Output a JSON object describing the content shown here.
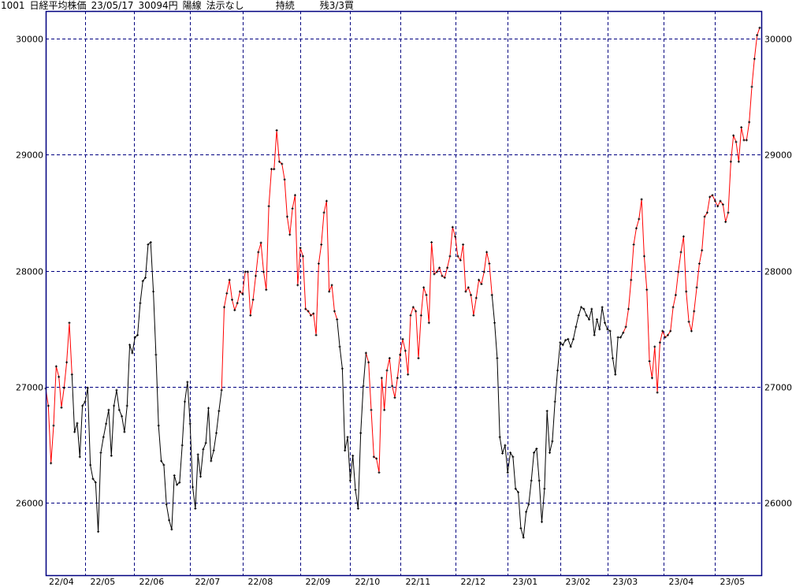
{
  "header": {
    "code": "1001",
    "name": "日経平均株価",
    "date": "23/05/17",
    "price": "30094円",
    "candle": "陽線",
    "signal": "法示なし",
    "state": "持続",
    "position": "残3/3買"
  },
  "chart_data": {
    "type": "line",
    "title": "",
    "xlabel": "",
    "ylabel": "",
    "ylim": [
      25375,
      30238
    ],
    "yticks": [
      26000,
      27000,
      28000,
      29000,
      30000
    ],
    "grid": true,
    "colors": {
      "frame": "#000080",
      "grid": "#000080",
      "up": "#ff0000",
      "down": "#000000",
      "marker": "#000000"
    },
    "xticks": [
      {
        "label": "22/04",
        "index": 0,
        "grid": false
      },
      {
        "label": "22/05",
        "index": 15,
        "grid": true
      },
      {
        "label": "22/06",
        "index": 33.5,
        "grid": true
      },
      {
        "label": "22/07",
        "index": 55,
        "grid": true
      },
      {
        "label": "22/08",
        "index": 75,
        "grid": true
      },
      {
        "label": "22/09",
        "index": 97,
        "grid": true
      },
      {
        "label": "22/10",
        "index": 116,
        "grid": true
      },
      {
        "label": "22/11",
        "index": 135,
        "grid": true
      },
      {
        "label": "22/12",
        "index": 156,
        "grid": true
      },
      {
        "label": "23/01",
        "index": 176,
        "grid": true
      },
      {
        "label": "23/02",
        "index": 196,
        "grid": true
      },
      {
        "label": "23/03",
        "index": 214,
        "grid": true
      },
      {
        "label": "23/04",
        "index": 235.5,
        "grid": true
      },
      {
        "label": "23/05",
        "index": 255,
        "grid": true
      }
    ],
    "series": [
      {
        "color": "#ff0000",
        "values": [
          26985,
          26835,
          26340,
          26665,
          27175,
          27085,
          26820,
          26990,
          27210,
          27550,
          27105
        ]
      },
      {
        "color": "#000000",
        "values": [
          26610,
          26685,
          26395,
          26835,
          26870,
          26990,
          26325,
          26205,
          26175,
          25750,
          26430,
          26565,
          26680,
          26800,
          26405,
          26835,
          26970,
          26800,
          26745,
          26610,
          26835,
          27360,
          27290,
          27425,
          27445,
          27720,
          27910,
          27940,
          28225,
          28245,
          27820,
          27275,
          26665,
          26360,
          26325,
          25985,
          25850,
          25770,
          26235,
          26155,
          26175,
          26495,
          26870,
          27040,
          26680,
          26135,
          25950,
          26415,
          26225,
          26460,
          26515,
          26815,
          26360,
          26450,
          26600,
          26790,
          26970
        ]
      },
      {
        "color": "#ff0000",
        "values": [
          27685,
          27805,
          27920,
          27750,
          27660,
          27720,
          27820,
          27800,
          27990,
          27990,
          27615,
          27750,
          27955,
          28160,
          28240,
          27990,
          27835,
          28555,
          28875,
          28875,
          29210,
          28940,
          28920,
          28785,
          28465,
          28310,
          28535,
          28650,
          27875,
          28195,
          28125,
          27670,
          27650,
          27615,
          27630,
          27445,
          28060,
          28225,
          28500,
          28600,
          27820,
          27875,
          27650,
          27580
        ]
      },
      {
        "color": "#000000",
        "values": [
          27345,
          27155,
          26450,
          26565,
          26190,
          26405,
          26110,
          25950,
          26600,
          27005,
          27290
        ]
      },
      {
        "color": "#ff0000",
        "values": [
          27210,
          26800,
          26395,
          26380,
          26260,
          27075,
          26800,
          27140,
          27245,
          27005,
          26905,
          27075,
          27275,
          27410,
          27310,
          27105,
          27615,
          27685,
          27650,
          27245,
          27615,
          27855,
          27790,
          27550,
          28245,
          27970,
          27990,
          28025,
          27955,
          27940,
          28025,
          28125,
          28375,
          28295,
          28125,
          28090,
          28225,
          27820,
          27855,
          27790,
          27615,
          27765,
          27920,
          27885,
          27990,
          28160,
          28060,
          27790
        ]
      },
      {
        "color": "#000000",
        "values": [
          27550,
          27245,
          26565,
          26425,
          26495,
          26260,
          26430,
          26395,
          26120,
          26090,
          25780,
          25700,
          25920,
          25985,
          26190,
          26430,
          26465,
          26190,
          25835,
          26120,
          26790,
          26430,
          26530,
          26870,
          27140,
          27380,
          27360,
          27400,
          27410,
          27345,
          27410,
          27515,
          27615,
          27685,
          27670,
          27615,
          27580,
          27670,
          27445,
          27580,
          27495,
          27685,
          27550,
          27495,
          27480,
          27245,
          27105,
          27425,
          27425,
          27465
        ]
      },
      {
        "color": "#ff0000",
        "values": [
          27515,
          27670,
          27920,
          28225,
          28365,
          28445,
          28615,
          28125,
          27835,
          27220,
          27075,
          27345,
          26950,
          27380,
          27480,
          27425,
          27445,
          27480,
          27685,
          27790,
          27990,
          28160,
          28295,
          27820,
          27560,
          27480,
          27650,
          27855,
          28060,
          28175,
          28465,
          28500,
          28635,
          28650,
          28600,
          28555,
          28600,
          28570,
          28420,
          28500,
          28940,
          29165,
          29110,
          28940,
          29235,
          29125,
          29125,
          29280,
          29585,
          29825,
          30030,
          30094
        ]
      }
    ]
  }
}
